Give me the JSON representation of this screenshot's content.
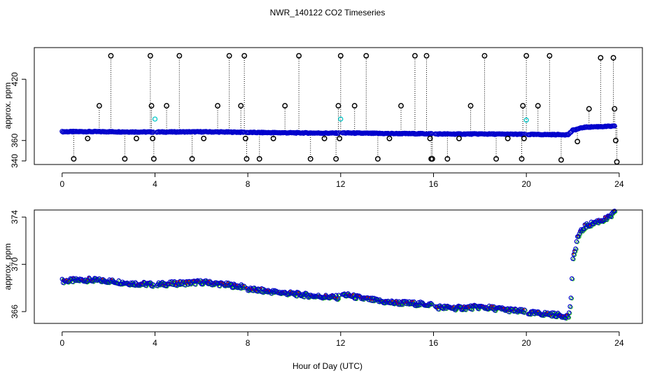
{
  "figure": {
    "title": "NWR_140122  CO2 Timeseries",
    "xlabel": "Hour of Day (UTC)"
  },
  "colors": {
    "axis": "#000000",
    "primary_points": "#0000cc",
    "qc_flag_points": "#00c8c8",
    "spike_points": "#000000",
    "spike_lines": "#000000",
    "secondary_series": "#00b000",
    "tertiary_series": "#dd0000"
  },
  "chart_data": [
    {
      "type": "scatter",
      "panel": "full-range",
      "ylabel": "approx. ppm",
      "xlim": [
        -1.2,
        25
      ],
      "ylim": [
        336.5,
        451
      ],
      "x_ticks": [
        0,
        4,
        8,
        12,
        16,
        20,
        24
      ],
      "y_ticks": [
        340,
        360,
        420
      ],
      "series": [
        {
          "role": "primary",
          "values_hourly_x": [
            0,
            1,
            2,
            3,
            3.9,
            4,
            5,
            6,
            7,
            7.8,
            8,
            9,
            10,
            11,
            11.9,
            12,
            13,
            14,
            15,
            15.9,
            16,
            17,
            18,
            19,
            19.9,
            20,
            21,
            21.8,
            22,
            22.5,
            23,
            23.8
          ],
          "values_hourly_y": [
            368.6,
            368.7,
            368.6,
            368.4,
            368.3,
            368.3,
            368.4,
            368.5,
            368.3,
            368.1,
            367.9,
            367.7,
            367.5,
            367.3,
            367.2,
            367.5,
            367.1,
            366.8,
            366.7,
            366.6,
            366.4,
            366.3,
            366.4,
            366.2,
            366.0,
            365.9,
            365.8,
            365.7,
            370,
            373,
            373.5,
            374
          ]
        },
        {
          "role": "spikes",
          "x": [
            0.5,
            1.1,
            1.6,
            2.1,
            2.7,
            3.2,
            3.8,
            3.85,
            3.9,
            3.95,
            4.5,
            5.05,
            5.6,
            6.1,
            6.7,
            7.2,
            7.7,
            7.85,
            7.9,
            7.95,
            8.5,
            9.1,
            9.6,
            10.2,
            10.7,
            11.3,
            11.8,
            11.9,
            11.95,
            12.0,
            12.6,
            13.1,
            13.6,
            14.1,
            14.6,
            15.2,
            15.7,
            15.85,
            15.9,
            15.95,
            16.6,
            17.1,
            17.6,
            18.2,
            18.7,
            19.2,
            19.8,
            19.85,
            19.9,
            20.0,
            20.5,
            21.0,
            21.5,
            22.2,
            22.7,
            23.2,
            23.75,
            23.8,
            23.85,
            23.9
          ],
          "y": [
            342,
            362,
            394,
            443,
            342,
            362,
            443,
            394,
            362,
            342,
            394,
            443,
            342,
            362,
            394,
            443,
            394,
            443,
            362,
            342,
            342,
            362,
            394,
            443,
            342,
            362,
            342,
            394,
            362,
            443,
            394,
            443,
            342,
            362,
            394,
            443,
            443,
            362,
            342,
            342,
            342,
            362,
            394,
            443,
            342,
            362,
            342,
            394,
            362,
            443,
            394,
            443,
            341,
            359,
            391,
            441,
            441,
            391,
            360,
            339
          ]
        },
        {
          "role": "qc-flag",
          "x": [
            4.0,
            12.0,
            20.0
          ],
          "y": [
            381,
            381,
            380
          ]
        }
      ]
    },
    {
      "type": "scatter",
      "panel": "zoom",
      "ylabel": "approx. ppm",
      "xlim": [
        -1.2,
        25
      ],
      "ylim": [
        365,
        374.6
      ],
      "x_ticks": [
        0,
        4,
        8,
        12,
        16,
        20,
        24
      ],
      "y_ticks": [
        366,
        370,
        374
      ],
      "series": [
        {
          "role": "primary",
          "values_hourly_x": [
            0,
            1,
            2,
            3,
            3.9,
            4,
            5,
            6,
            7,
            7.8,
            8,
            9,
            10,
            11,
            11.9,
            12,
            13,
            14,
            15,
            15.9,
            16,
            17,
            18,
            19,
            19.9,
            20,
            21,
            21.8,
            21.9,
            22.0,
            22.2,
            22.5,
            23,
            23.5,
            23.8
          ],
          "values_hourly_y": [
            368.6,
            368.7,
            368.6,
            368.4,
            368.3,
            368.3,
            368.4,
            368.5,
            368.3,
            368.1,
            367.9,
            367.7,
            367.5,
            367.3,
            367.2,
            367.5,
            367.1,
            366.8,
            366.7,
            366.6,
            366.4,
            366.3,
            366.4,
            366.2,
            366.0,
            365.9,
            365.8,
            365.6,
            366.5,
            370.3,
            372.3,
            373.2,
            373.6,
            373.9,
            374.4
          ]
        }
      ]
    }
  ]
}
